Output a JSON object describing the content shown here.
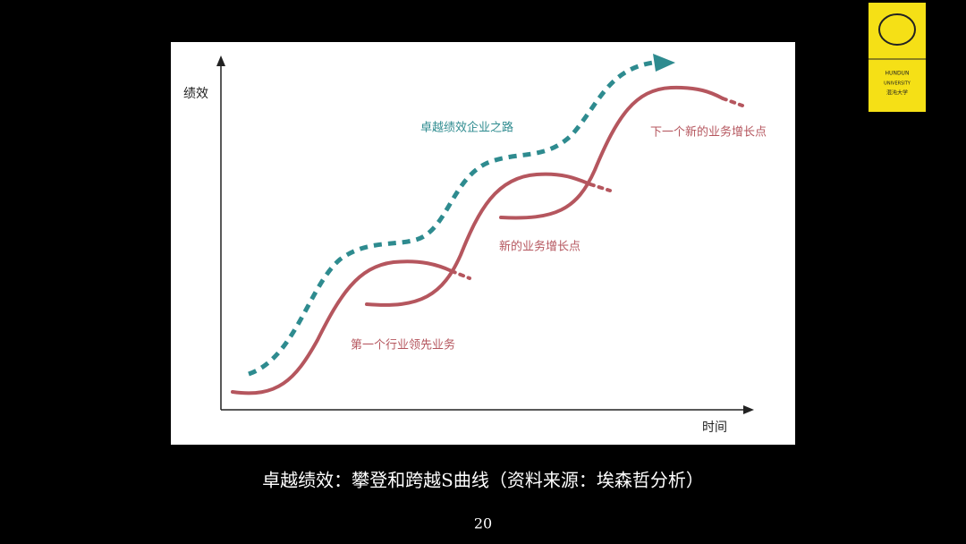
{
  "diagram": {
    "y_axis_label": "绩效",
    "x_axis_label": "时间",
    "labels": [
      "卓越绩效企业之路",
      "下一个新的业务增长点",
      "新的业务增长点",
      "第一个行业领先业务"
    ]
  },
  "caption": "卓越绩效：攀登和跨越S曲线（资料来源：埃森哲分析）",
  "page_number": "20",
  "logo": {
    "line1": "HUNDUN",
    "line2": "UNIVERSITY",
    "line3": "混沌大学"
  }
}
